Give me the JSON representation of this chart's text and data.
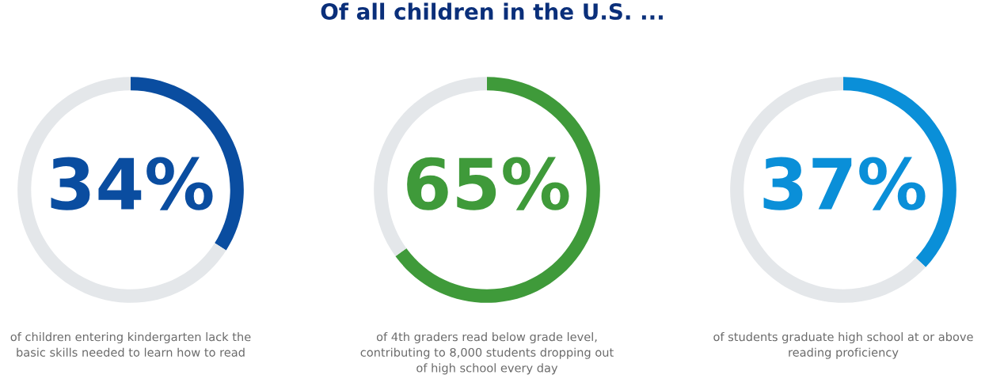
{
  "chart_data": [
    {
      "type": "other",
      "title": "Of all children in the U.S. ..."
    },
    {
      "type": "donut",
      "categories": [
        null,
        null
      ],
      "values": [
        34,
        66
      ],
      "colors": [
        "#0a4da0",
        "#e4e7ea"
      ],
      "value_labels": [
        "34%",
        null
      ],
      "annotations": [
        "of children entering kindergarten lack the\nbasic skills needed to learn how to read"
      ]
    },
    {
      "type": "donut",
      "categories": [
        null,
        null
      ],
      "values": [
        65,
        35
      ],
      "colors": [
        "#3f9a3a",
        "#e4e7ea"
      ],
      "value_labels": [
        "65%",
        null
      ],
      "annotations": [
        "of 4th graders read below grade level,\ncontributing to 8,000 students dropping out\nof high school every day"
      ]
    },
    {
      "type": "donut",
      "categories": [
        null,
        null
      ],
      "values": [
        37,
        63
      ],
      "colors": [
        "#0a8fd8",
        "#e4e7ea"
      ],
      "value_labels": [
        "37%",
        null
      ],
      "annotations": [
        "of students graduate high school at or above\nreading proficiency"
      ]
    }
  ]
}
